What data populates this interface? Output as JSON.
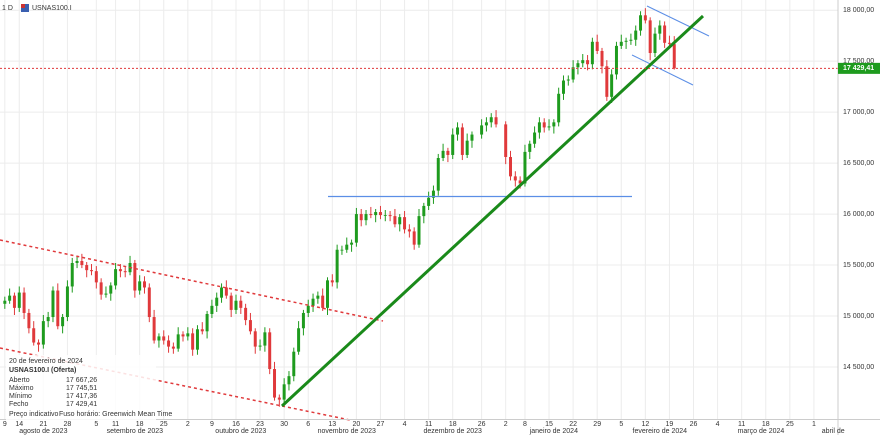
{
  "chart_data": {
    "type": "candlestick",
    "timeframe": "1 D",
    "symbol": "USNAS100.I",
    "up_color": "#1e9b1e",
    "down_color": "#e0393b",
    "grid": true,
    "xlim": [
      "2023-08-08",
      "2024-04-08"
    ],
    "ylim": [
      13980,
      18100
    ],
    "yticks": [
      {
        "value": 14500,
        "label": "14 500,00"
      },
      {
        "value": 15000,
        "label": "15 000,00"
      },
      {
        "value": 15500,
        "label": "15 500,00"
      },
      {
        "value": 16000,
        "label": "16 000,00"
      },
      {
        "value": 16500,
        "label": "16 500,00"
      },
      {
        "value": 17000,
        "label": "17 000,00"
      },
      {
        "value": 17500,
        "label": "17 500,00"
      },
      {
        "value": 18000,
        "label": "18 000,00"
      }
    ],
    "xticks": [
      {
        "value": "2023-08-09",
        "label": "9"
      },
      {
        "value": "2023-08-14",
        "label": "14"
      },
      {
        "value": "2023-08-21",
        "label": "21"
      },
      {
        "value": "2023-08-28",
        "label": "28"
      },
      {
        "value": "2023-09-05",
        "label": "5"
      },
      {
        "value": "2023-09-11",
        "label": "11"
      },
      {
        "value": "2023-09-18",
        "label": "18"
      },
      {
        "value": "2023-09-25",
        "label": "25"
      },
      {
        "value": "2023-10-02",
        "label": "2"
      },
      {
        "value": "2023-10-09",
        "label": "9"
      },
      {
        "value": "2023-10-16",
        "label": "16"
      },
      {
        "value": "2023-10-23",
        "label": "23"
      },
      {
        "value": "2023-10-30",
        "label": "30"
      },
      {
        "value": "2023-11-06",
        "label": "6"
      },
      {
        "value": "2023-11-13",
        "label": "13"
      },
      {
        "value": "2023-11-20",
        "label": "20"
      },
      {
        "value": "2023-11-27",
        "label": "27"
      },
      {
        "value": "2023-12-04",
        "label": "4"
      },
      {
        "value": "2023-12-11",
        "label": "11"
      },
      {
        "value": "2023-12-18",
        "label": "18"
      },
      {
        "value": "2023-12-26",
        "label": "26"
      },
      {
        "value": "2024-01-02",
        "label": "2"
      },
      {
        "value": "2024-01-08",
        "label": "8"
      },
      {
        "value": "2024-01-15",
        "label": "15"
      },
      {
        "value": "2024-01-22",
        "label": "22"
      },
      {
        "value": "2024-01-29",
        "label": "29"
      },
      {
        "value": "2024-02-05",
        "label": "5"
      },
      {
        "value": "2024-02-12",
        "label": "12"
      },
      {
        "value": "2024-02-19",
        "label": "19"
      },
      {
        "value": "2024-02-26",
        "label": "26"
      },
      {
        "value": "2024-03-04",
        "label": "4"
      },
      {
        "value": "2024-03-11",
        "label": "11"
      },
      {
        "value": "2024-03-18",
        "label": "18"
      },
      {
        "value": "2024-03-25",
        "label": "25"
      },
      {
        "value": "2024-04-01",
        "label": "1"
      }
    ],
    "month_ticks": [
      {
        "value": "2023-08-21",
        "label": "agosto de 2023"
      },
      {
        "value": "2023-09-15",
        "label": "setembro de 2023"
      },
      {
        "value": "2023-10-17",
        "label": "outubro de 2023"
      },
      {
        "value": "2023-11-16",
        "label": "novembro de 2023"
      },
      {
        "value": "2023-12-18",
        "label": "dezembro de 2023"
      },
      {
        "value": "2024-01-16",
        "label": "janeiro de 2024"
      },
      {
        "value": "2024-02-15",
        "label": "fevereiro de 2024"
      },
      {
        "value": "2024-03-15",
        "label": "março de 2024"
      },
      {
        "value": "2024-04-05",
        "label": "abril de"
      }
    ],
    "x": [
      "2023-08-09",
      "2023-08-10",
      "2023-08-11",
      "2023-08-14",
      "2023-08-15",
      "2023-08-16",
      "2023-08-17",
      "2023-08-18",
      "2023-08-21",
      "2023-08-22",
      "2023-08-23",
      "2023-08-24",
      "2023-08-25",
      "2023-08-28",
      "2023-08-29",
      "2023-08-30",
      "2023-08-31",
      "2023-09-01",
      "2023-09-04",
      "2023-09-05",
      "2023-09-06",
      "2023-09-07",
      "2023-09-08",
      "2023-09-11",
      "2023-09-12",
      "2023-09-13",
      "2023-09-14",
      "2023-09-15",
      "2023-09-18",
      "2023-09-19",
      "2023-09-20",
      "2023-09-21",
      "2023-09-22",
      "2023-09-25",
      "2023-09-26",
      "2023-09-27",
      "2023-09-28",
      "2023-09-29",
      "2023-10-02",
      "2023-10-03",
      "2023-10-04",
      "2023-10-05",
      "2023-10-06",
      "2023-10-09",
      "2023-10-10",
      "2023-10-11",
      "2023-10-12",
      "2023-10-13",
      "2023-10-16",
      "2023-10-17",
      "2023-10-18",
      "2023-10-19",
      "2023-10-20",
      "2023-10-23",
      "2023-10-24",
      "2023-10-25",
      "2023-10-26",
      "2023-10-27",
      "2023-10-30",
      "2023-10-31",
      "2023-11-01",
      "2023-11-02",
      "2023-11-03",
      "2023-11-06",
      "2023-11-07",
      "2023-11-08",
      "2023-11-09",
      "2023-11-10",
      "2023-11-13",
      "2023-11-14",
      "2023-11-15",
      "2023-11-16",
      "2023-11-17",
      "2023-11-20",
      "2023-11-21",
      "2023-11-22",
      "2023-11-23",
      "2023-11-24",
      "2023-11-27",
      "2023-11-28",
      "2023-11-29",
      "2023-11-30",
      "2023-12-01",
      "2023-12-04",
      "2023-12-05",
      "2023-12-06",
      "2023-12-07",
      "2023-12-08",
      "2023-12-11",
      "2023-12-12",
      "2023-12-13",
      "2023-12-14",
      "2023-12-15",
      "2023-12-18",
      "2023-12-19",
      "2023-12-20",
      "2023-12-21",
      "2023-12-22",
      "2023-12-26",
      "2023-12-27",
      "2023-12-28",
      "2023-12-29",
      "2024-01-02",
      "2024-01-03",
      "2024-01-04",
      "2024-01-05",
      "2024-01-08",
      "2024-01-09",
      "2024-01-10",
      "2024-01-11",
      "2024-01-12",
      "2024-01-15",
      "2024-01-16",
      "2024-01-17",
      "2024-01-18",
      "2024-01-19",
      "2024-01-22",
      "2024-01-23",
      "2024-01-24",
      "2024-01-25",
      "2024-01-26",
      "2024-01-29",
      "2024-01-30",
      "2024-01-31",
      "2024-02-01",
      "2024-02-02",
      "2024-02-05",
      "2024-02-06",
      "2024-02-07",
      "2024-02-08",
      "2024-02-09",
      "2024-02-12",
      "2024-02-13",
      "2024-02-14",
      "2024-02-15",
      "2024-02-16",
      "2024-02-19",
      "2024-02-20"
    ],
    "open": [
      15120,
      15150,
      15200,
      15080,
      15230,
      15030,
      14880,
      14740,
      14720,
      14950,
      14990,
      15250,
      14900,
      14990,
      15290,
      15520,
      15540,
      15500,
      15450,
      15440,
      15330,
      15210,
      15220,
      15300,
      15460,
      15440,
      15430,
      15520,
      15250,
      15340,
      15280,
      14990,
      14760,
      14800,
      14760,
      14700,
      14680,
      14820,
      14800,
      14830,
      14670,
      14870,
      14850,
      15020,
      15100,
      15180,
      15280,
      15200,
      15060,
      15150,
      15080,
      14960,
      14850,
      14700,
      14710,
      14840,
      14480,
      14200,
      14180,
      14330,
      14410,
      14650,
      14880,
      15030,
      15100,
      15170,
      15200,
      15080,
      15350,
      15330,
      15650,
      15650,
      15700,
      15720,
      16000,
      15940,
      16000,
      15990,
      16020,
      15990,
      15990,
      15980,
      15900,
      15970,
      15850,
      15830,
      15700,
      15980,
      16080,
      16160,
      16230,
      16550,
      16620,
      16580,
      16780,
      16850,
      16580,
      16720,
      16780,
      16870,
      16900,
      16950,
      16880,
      16560,
      16370,
      16330,
      16300,
      16610,
      16690,
      16800,
      16900,
      16850,
      16860,
      16900,
      17180,
      17310,
      17320,
      17440,
      17480,
      17510,
      17470,
      17690,
      17600,
      17450,
      17150,
      17370,
      17650,
      17690,
      17700,
      17710,
      17800,
      17950,
      17900,
      17580,
      17770,
      17850,
      17680,
      17667.26
    ],
    "high": [
      15190,
      15270,
      15230,
      15290,
      15280,
      15070,
      14950,
      14770,
      15010,
      15040,
      15290,
      15320,
      15020,
      15350,
      15570,
      15580,
      15610,
      15530,
      15510,
      15490,
      15370,
      15290,
      15330,
      15520,
      15510,
      15480,
      15590,
      15550,
      15400,
      15390,
      15320,
      15060,
      14830,
      14860,
      14810,
      14740,
      14890,
      14850,
      14890,
      14880,
      14910,
      14940,
      15050,
      15160,
      15230,
      15320,
      15350,
      15230,
      15210,
      15200,
      15120,
      15030,
      14880,
      14770,
      14890,
      14880,
      14550,
      14230,
      14390,
      14460,
      14690,
      14950,
      15060,
      15160,
      15220,
      15240,
      15270,
      15380,
      15410,
      15700,
      15690,
      15770,
      15750,
      16060,
      16050,
      16040,
      16070,
      16050,
      16080,
      16040,
      16030,
      16050,
      16000,
      16030,
      15900,
      15870,
      16050,
      16110,
      16220,
      16280,
      16590,
      16690,
      16650,
      16840,
      16900,
      16890,
      16790,
      16810,
      16930,
      16950,
      16990,
      17020,
      16910,
      16620,
      16420,
      16370,
      16680,
      16720,
      16860,
      16950,
      16940,
      16930,
      16930,
      17240,
      17360,
      17360,
      17510,
      17510,
      17570,
      17560,
      17730,
      17760,
      17630,
      17510,
      17420,
      17690,
      17760,
      17730,
      17770,
      17850,
      17990,
      18020,
      17930,
      17830,
      17900,
      17890,
      17750,
      17745.51
    ],
    "low": [
      15070,
      15120,
      15010,
      15040,
      14970,
      14830,
      14710,
      14650,
      14680,
      14890,
      14940,
      14870,
      14830,
      14950,
      15230,
      15470,
      15470,
      15380,
      15400,
      15270,
      15160,
      15180,
      15150,
      15260,
      15380,
      15380,
      15400,
      15180,
      15210,
      15220,
      14940,
      14730,
      14690,
      14720,
      14640,
      14630,
      14650,
      14750,
      14760,
      14610,
      14620,
      14820,
      14780,
      14980,
      15040,
      15130,
      15170,
      14990,
      15020,
      15020,
      14910,
      14820,
      14630,
      14660,
      14650,
      14430,
      14170,
      14110,
      14140,
      14270,
      14360,
      14620,
      14810,
      14990,
      15040,
      15120,
      15050,
      15010,
      15290,
      15270,
      15600,
      15620,
      15630,
      15680,
      15880,
      15890,
      15960,
      15920,
      15950,
      15930,
      15930,
      15870,
      15830,
      15810,
      15770,
      15650,
      15670,
      15910,
      16040,
      16100,
      16180,
      16520,
      16510,
      16540,
      16720,
      16530,
      16550,
      16650,
      16740,
      16810,
      16850,
      16850,
      16490,
      16330,
      16270,
      16250,
      16270,
      16540,
      16650,
      16740,
      16800,
      16820,
      16790,
      16860,
      17120,
      17260,
      17290,
      17370,
      17440,
      17410,
      17420,
      17570,
      17380,
      17110,
      17090,
      17320,
      17620,
      17620,
      17660,
      17650,
      17750,
      17870,
      17510,
      17540,
      17710,
      17630,
      17640,
      17417.36
    ],
    "close": [
      15150,
      15200,
      15080,
      15230,
      15030,
      14880,
      14740,
      14720,
      14950,
      14990,
      15250,
      14900,
      14990,
      15290,
      15520,
      15540,
      15500,
      15450,
      15440,
      15330,
      15210,
      15220,
      15300,
      15460,
      15440,
      15430,
      15520,
      15250,
      15340,
      15280,
      14990,
      14760,
      14800,
      14760,
      14700,
      14680,
      14820,
      14800,
      14830,
      14670,
      14870,
      14850,
      15020,
      15100,
      15180,
      15280,
      15200,
      15060,
      15150,
      15080,
      14960,
      14850,
      14700,
      14710,
      14840,
      14480,
      14200,
      14180,
      14330,
      14410,
      14650,
      14880,
      15030,
      15100,
      15170,
      15200,
      15080,
      15350,
      15330,
      15650,
      15650,
      15700,
      15720,
      16000,
      15940,
      16000,
      15990,
      16020,
      15990,
      15990,
      15980,
      15900,
      15970,
      15850,
      15830,
      15700,
      15980,
      16080,
      16160,
      16230,
      16550,
      16620,
      16580,
      16780,
      16850,
      16580,
      16720,
      16780,
      16870,
      16900,
      16950,
      16880,
      16560,
      16370,
      16330,
      16300,
      16610,
      16690,
      16800,
      16900,
      16850,
      16860,
      16900,
      17180,
      17310,
      17320,
      17440,
      17480,
      17510,
      17470,
      17690,
      17600,
      17450,
      17150,
      17370,
      17650,
      17690,
      17700,
      17710,
      17800,
      17950,
      17900,
      17580,
      17770,
      17850,
      17680,
      17670,
      17429.41
    ],
    "last_price": {
      "value": 17429.41,
      "label": "17 429,41"
    }
  },
  "info": {
    "date": "20 de fevereiro de 2024",
    "symbol": "USNAS100.I (Oferta)",
    "rows": [
      [
        "Aberto",
        "17 667,26"
      ],
      [
        "Máximo",
        "17 745,51"
      ],
      [
        "Mínimo",
        "17 417,36"
      ],
      [
        "Fecho",
        "17 429,41"
      ]
    ],
    "footer": [
      "Preço indicativo",
      "Fuso horário: Greenwich Mean Time"
    ]
  }
}
